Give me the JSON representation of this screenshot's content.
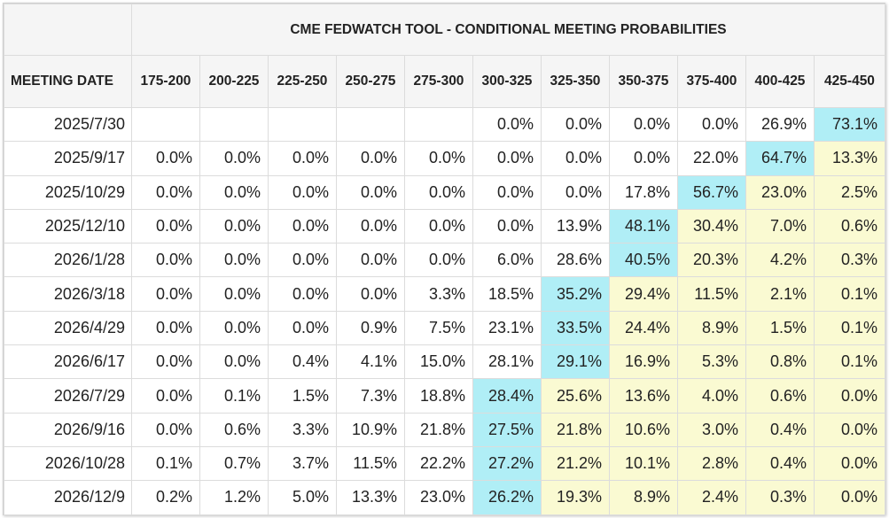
{
  "title": "CME FEDWATCH TOOL - CONDITIONAL MEETING PROBABILITIES",
  "header_label": "MEETING DATE",
  "columns": [
    "175-200",
    "200-225",
    "225-250",
    "250-275",
    "275-300",
    "300-325",
    "325-350",
    "350-375",
    "375-400",
    "400-425",
    "425-450"
  ],
  "rows": [
    {
      "date": "2025/7/30",
      "values": [
        "",
        "",
        "",
        "",
        "",
        "0.0%",
        "0.0%",
        "0.0%",
        "0.0%",
        "26.9%",
        "73.1%"
      ],
      "highlight": 10
    },
    {
      "date": "2025/9/17",
      "values": [
        "0.0%",
        "0.0%",
        "0.0%",
        "0.0%",
        "0.0%",
        "0.0%",
        "0.0%",
        "0.0%",
        "22.0%",
        "64.7%",
        "13.3%"
      ],
      "highlight": 9
    },
    {
      "date": "2025/10/29",
      "values": [
        "0.0%",
        "0.0%",
        "0.0%",
        "0.0%",
        "0.0%",
        "0.0%",
        "0.0%",
        "17.8%",
        "56.7%",
        "23.0%",
        "2.5%"
      ],
      "highlight": 8
    },
    {
      "date": "2025/12/10",
      "values": [
        "0.0%",
        "0.0%",
        "0.0%",
        "0.0%",
        "0.0%",
        "0.0%",
        "13.9%",
        "48.1%",
        "30.4%",
        "7.0%",
        "0.6%"
      ],
      "highlight": 7
    },
    {
      "date": "2026/1/28",
      "values": [
        "0.0%",
        "0.0%",
        "0.0%",
        "0.0%",
        "0.0%",
        "6.0%",
        "28.6%",
        "40.5%",
        "20.3%",
        "4.2%",
        "0.3%"
      ],
      "highlight": 7
    },
    {
      "date": "2026/3/18",
      "values": [
        "0.0%",
        "0.0%",
        "0.0%",
        "0.0%",
        "3.3%",
        "18.5%",
        "35.2%",
        "29.4%",
        "11.5%",
        "2.1%",
        "0.1%"
      ],
      "highlight": 6
    },
    {
      "date": "2026/4/29",
      "values": [
        "0.0%",
        "0.0%",
        "0.0%",
        "0.9%",
        "7.5%",
        "23.1%",
        "33.5%",
        "24.4%",
        "8.9%",
        "1.5%",
        "0.1%"
      ],
      "highlight": 6
    },
    {
      "date": "2026/6/17",
      "values": [
        "0.0%",
        "0.0%",
        "0.4%",
        "4.1%",
        "15.0%",
        "28.1%",
        "29.1%",
        "16.9%",
        "5.3%",
        "0.8%",
        "0.1%"
      ],
      "highlight": 6
    },
    {
      "date": "2026/7/29",
      "values": [
        "0.0%",
        "0.1%",
        "1.5%",
        "7.3%",
        "18.8%",
        "28.4%",
        "25.6%",
        "13.6%",
        "4.0%",
        "0.6%",
        "0.0%"
      ],
      "highlight": 5
    },
    {
      "date": "2026/9/16",
      "values": [
        "0.0%",
        "0.6%",
        "3.3%",
        "10.9%",
        "21.8%",
        "27.5%",
        "21.8%",
        "10.6%",
        "3.0%",
        "0.4%",
        "0.0%"
      ],
      "highlight": 5
    },
    {
      "date": "2026/10/28",
      "values": [
        "0.1%",
        "0.7%",
        "3.7%",
        "11.5%",
        "22.2%",
        "27.2%",
        "21.2%",
        "10.1%",
        "2.8%",
        "0.4%",
        "0.0%"
      ],
      "highlight": 5
    },
    {
      "date": "2026/12/9",
      "values": [
        "0.2%",
        "1.2%",
        "5.0%",
        "13.3%",
        "23.0%",
        "26.2%",
        "19.3%",
        "8.9%",
        "2.4%",
        "0.3%",
        "0.0%"
      ],
      "highlight": 5
    }
  ],
  "colors": {
    "highlight": "#b0eef6",
    "above_current": "#fafad2",
    "header_bg": "#f5f5f5"
  },
  "current_range_col": 10
}
